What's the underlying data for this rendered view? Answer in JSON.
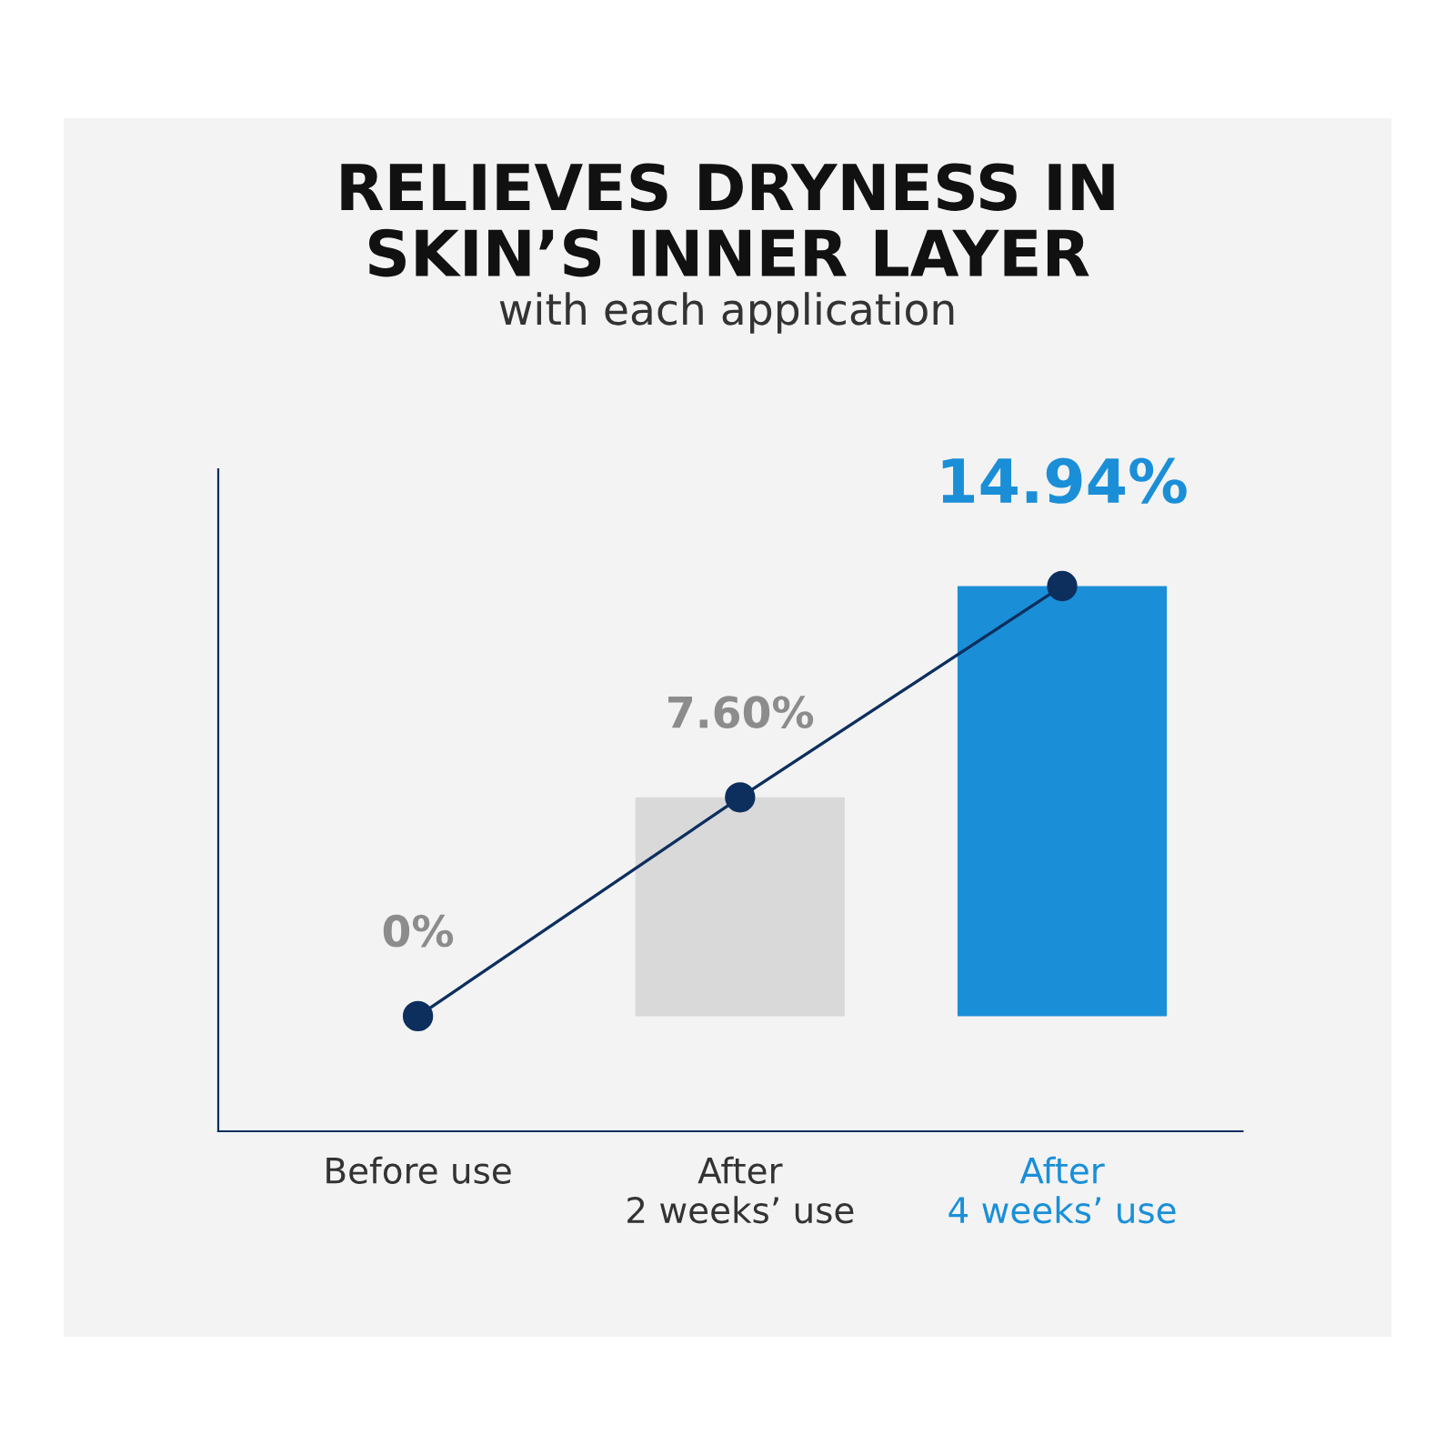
{
  "chart_data": {
    "type": "bar",
    "title": "RELIEVES DRYNESS IN\nSKIN’S INNER LAYER",
    "subtitle": "with each application",
    "categories": [
      "Before use",
      "After\n2 weeks’ use",
      "After\n4 weeks’ use"
    ],
    "ylim": [
      -4,
      19
    ],
    "tick_labels": "x",
    "series": [
      {
        "colors": [
          "#d9d9d9",
          "#d9d9d9",
          "#1a8fd8"
        ],
        "values": [
          0,
          7.6,
          14.94
        ],
        "value_labels": [
          "0%",
          "7.60%",
          "14.94%"
        ]
      },
      {
        "type": "line",
        "color": "#0d2f5e",
        "values": [
          0,
          7.6,
          14.94
        ],
        "marker": "circle",
        "line_style": "solid"
      }
    ],
    "grid": false,
    "legend": false
  }
}
